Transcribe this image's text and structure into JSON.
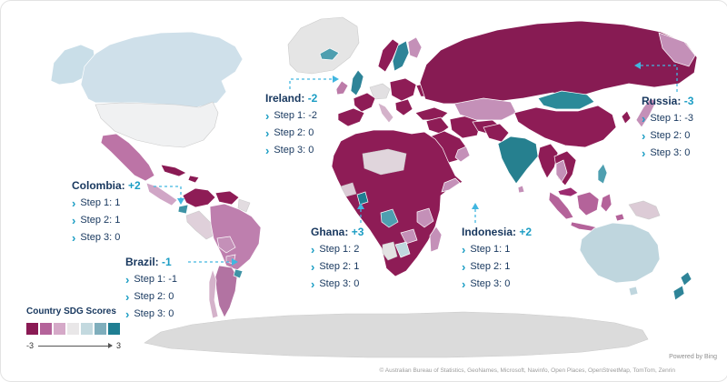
{
  "legend": {
    "title": "Country SDG Scores",
    "min_label": "-3",
    "max_label": "3",
    "swatches": [
      "#8A1A54",
      "#B4639A",
      "#D5A9C8",
      "#E9E7E8",
      "#C3D9DF",
      "#7FAEBC",
      "#1F7E92"
    ]
  },
  "callouts": [
    {
      "name": "Ireland:",
      "score": "-2",
      "steps": [
        "Step 1: -2",
        "Step 2: 0",
        "Step 3: 0"
      ]
    },
    {
      "name": "Russia:",
      "score": "-3",
      "steps": [
        "Step 1: -3",
        "Step 2: 0",
        "Step 3: 0"
      ]
    },
    {
      "name": "Colombia:",
      "score": "+2",
      "steps": [
        "Step 1: 1",
        "Step 2: 1",
        "Step 3: 0"
      ]
    },
    {
      "name": "Brazil:",
      "score": "-1",
      "steps": [
        "Step 1: -1",
        "Step 2: 0",
        "Step 3: 0"
      ]
    },
    {
      "name": "Ghana:",
      "score": "+3",
      "steps": [
        "Step 1: 2",
        "Step 2: 1",
        "Step 3: 0"
      ]
    },
    {
      "name": "Indonesia:",
      "score": "+2",
      "steps": [
        "Step 1: 1",
        "Step 2: 1",
        "Step 3: 0"
      ]
    }
  ],
  "footer": {
    "powered_by": "Powered by Bing",
    "attribution": "© Australian Bureau of Statistics, GeoNames, Microsoft, Navinfo, Open Places, OpenStreetMap, TomTom, Zenrin"
  },
  "chart_data": {
    "type": "choropleth",
    "title": "Country SDG Scores",
    "scale": {
      "min": -3,
      "max": 3
    },
    "labeled_countries": [
      {
        "country": "Ireland",
        "score": -2,
        "step1": -2,
        "step2": 0,
        "step3": 0
      },
      {
        "country": "Russia",
        "score": -3,
        "step1": -3,
        "step2": 0,
        "step3": 0
      },
      {
        "country": "Colombia",
        "score": 2,
        "step1": 1,
        "step2": 1,
        "step3": 0
      },
      {
        "country": "Brazil",
        "score": -1,
        "step1": -1,
        "step2": 0,
        "step3": 0
      },
      {
        "country": "Ghana",
        "score": 3,
        "step1": 2,
        "step2": 1,
        "step3": 0
      },
      {
        "country": "Indonesia",
        "score": 2,
        "step1": 1,
        "step2": 1,
        "step3": 0
      }
    ]
  },
  "map": {
    "ocean": "#FFFFFF",
    "connector_color": "#41B6E0",
    "region_colors": {
      "antarctica": "#DBDBDB",
      "greenland": "#E5E5E5",
      "arctic_island": "#2E8498",
      "alaska": "#C9DEE8",
      "canada": "#CFE0EA",
      "usa": "#F0F1F2",
      "mexico": "#BC74A6",
      "central_america": "#D0A6C6",
      "cuba": "#8A1A54",
      "hispaniola": "#8A1A54",
      "colombia": "#8E1C56",
      "venezuela": "#8E1C56",
      "guyanas": "#E2DCE0",
      "ecuador": "#3E93A5",
      "peru": "#DFD0DA",
      "brazil": "#BE7FAE",
      "bolivia": "#C490B8",
      "paraguay": "#C490B8",
      "argentina": "#B273A2",
      "chile": "#D4B2CA",
      "uruguay": "#3E93A5",
      "iceland": "#4E9FB0",
      "ireland": "#BC7BA8",
      "uk": "#2E8498",
      "norway": "#8E1C56",
      "sweden": "#2E8498",
      "finland": "#C490B8",
      "central_europe": "#E2E0E2",
      "france": "#8E1C56",
      "iberia": "#8E1C56",
      "italy": "#D4B2CA",
      "eastern_europe": "#8E1C56",
      "ukraine": "#8E1C56",
      "balkans": "#8E1C56",
      "turkey": "#8E1C56",
      "levant": "#8E1C56",
      "iran": "#8E1C56",
      "middle_east": "#8E1C56",
      "oman_yemen": "#C490B8",
      "africa_base": "#8E1C56",
      "sahel_light": "#E0D5DC",
      "west_africa_light": "#DCCBD6",
      "ghana": "#1F7E92",
      "congo_teal": "#4E9FB0",
      "somalia": "#C490B8",
      "east_africa": "#C490B8",
      "zambia_zimbabwe": "#C490B8",
      "namibia": "#E3E3E3",
      "botswana": "#BFD8DE",
      "madagascar": "#C490B8",
      "russia": "#871B53",
      "russia_far_east": "#C490B8",
      "kazakhstan": "#C490B8",
      "central_asia": "#8E1C56",
      "mongolia": "#2B8A99",
      "china": "#8E1C56",
      "pakistan_afghanistan": "#8E1C56",
      "india": "#26808F",
      "sri_lanka": "#C490B8",
      "myanmar": "#8E1C56",
      "indochina": "#8E1C56",
      "thailand": "#C490B8",
      "korea": "#8E1C56",
      "japan": "#C490B8",
      "philippines": "#4E9FB0",
      "malaysia": "#9C2B70",
      "indonesia": "#B4639A",
      "new_guinea": "#DCCBD6",
      "australia": "#BFD6DE",
      "tasmania": "#BFD6DE",
      "new_zealand": "#2E8498"
    }
  }
}
